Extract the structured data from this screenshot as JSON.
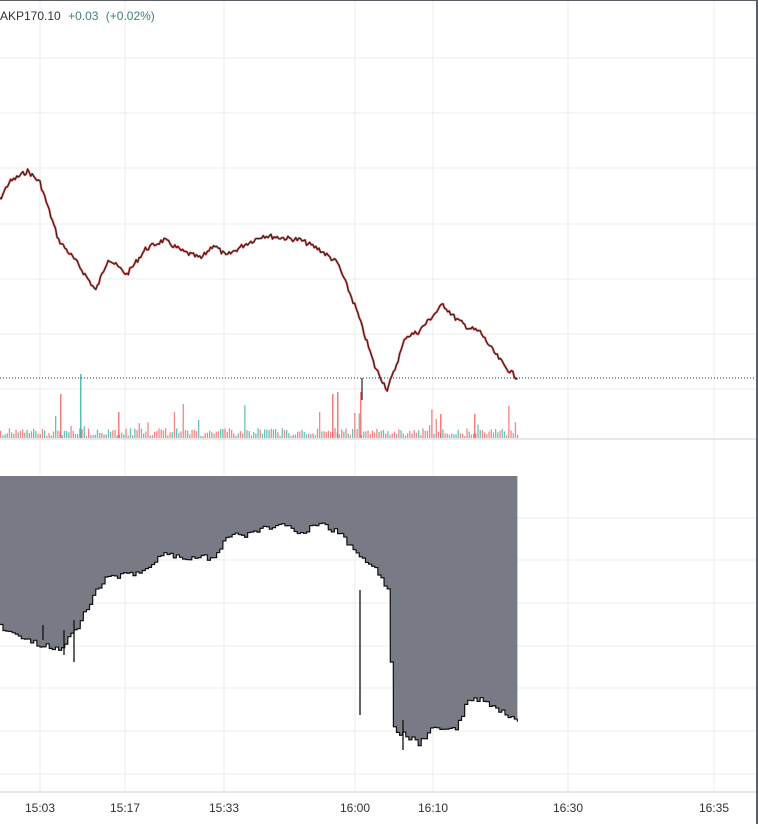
{
  "header": {
    "symbol_price": "AKP170.10",
    "change": "+0.03",
    "change_percent": "(+0.02%)"
  },
  "colors": {
    "up": "#26a69a",
    "down": "#ef5350",
    "price_line": "#222222",
    "area_fill": "#787a86",
    "grid": "#ececec",
    "separator": "#d0d0d0"
  },
  "chart_data": [
    {
      "type": "line",
      "name": "price",
      "x": [
        "14:55",
        "14:58",
        "15:01",
        "15:03",
        "15:06",
        "15:09",
        "15:12",
        "15:14",
        "15:17",
        "15:20",
        "15:23",
        "15:26",
        "15:29",
        "15:31",
        "15:33",
        "15:36",
        "15:39",
        "15:42",
        "15:45",
        "15:48",
        "15:51",
        "15:54",
        "15:57",
        "15:59",
        "16:00",
        "16:02",
        "16:04",
        "16:06",
        "16:08",
        "16:10",
        "16:12",
        "16:14",
        "16:16",
        "16:18",
        "16:20"
      ],
      "values": [
        170.8,
        170.95,
        171.0,
        170.95,
        170.7,
        170.6,
        170.48,
        170.62,
        170.55,
        170.66,
        170.7,
        170.65,
        170.62,
        170.68,
        170.63,
        170.68,
        170.72,
        170.71,
        170.7,
        170.66,
        170.6,
        170.4,
        170.15,
        170.05,
        170.12,
        170.28,
        170.3,
        170.36,
        170.42,
        170.36,
        170.32,
        170.3,
        170.22,
        170.15,
        170.1
      ],
      "last_price_line": "dotted"
    },
    {
      "type": "bar",
      "name": "volume",
      "x_range": [
        "14:55",
        "16:20"
      ],
      "colors": [
        "up",
        "down"
      ]
    },
    {
      "type": "area",
      "name": "lower-pane",
      "x": [
        "14:55",
        "14:58",
        "15:01",
        "15:03",
        "15:06",
        "15:09",
        "15:12",
        "15:14",
        "15:17",
        "15:20",
        "15:23",
        "15:26",
        "15:29",
        "15:31",
        "15:33",
        "15:36",
        "15:39",
        "15:42",
        "15:45",
        "15:48",
        "15:51",
        "15:54",
        "15:57",
        "15:59",
        "16:00",
        "16:02",
        "16:04",
        "16:06",
        "16:08",
        "16:10",
        "16:12",
        "16:14",
        "16:16",
        "16:18",
        "16:20"
      ],
      "values": [
        0.42,
        0.41,
        0.38,
        0.37,
        0.36,
        0.42,
        0.52,
        0.56,
        0.56,
        0.58,
        0.62,
        0.61,
        0.61,
        0.61,
        0.67,
        0.67,
        0.69,
        0.7,
        0.68,
        0.7,
        0.68,
        0.62,
        0.58,
        0.52,
        0.14,
        0.12,
        0.1,
        0.14,
        0.14,
        0.14,
        0.22,
        0.22,
        0.2,
        0.18,
        0.16
      ]
    }
  ],
  "x_axis": {
    "tick_labels": [
      "15:03",
      "15:17",
      "15:33",
      "16:00",
      "16:10",
      "16:30",
      "16:35"
    ]
  }
}
